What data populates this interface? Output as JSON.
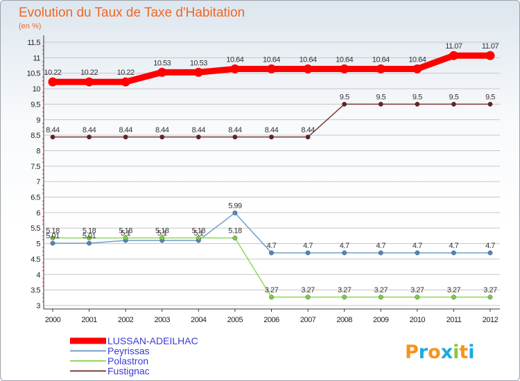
{
  "chart_data": {
    "type": "line",
    "title": "Evolution du Taux de Taxe d'Habitation",
    "subtitle": "(en %)",
    "categories": [
      "2000",
      "2001",
      "2002",
      "2003",
      "2004",
      "2005",
      "2006",
      "2007",
      "2008",
      "2009",
      "2010",
      "2011",
      "2012"
    ],
    "ylim": [
      3,
      11.5
    ],
    "yticks": [
      "3",
      "3.5",
      "4",
      "4.5",
      "5",
      "5.5",
      "6",
      "6.5",
      "7",
      "7.5",
      "8",
      "8.5",
      "9",
      "9.5",
      "10",
      "10.5",
      "11",
      "11.5"
    ],
    "grid": "horizontal",
    "legend_position": "bottom-left",
    "series": [
      {
        "name": "LUSSAN-ADEILHAC",
        "color": "#ff0000",
        "style": "bold",
        "values": [
          10.22,
          10.22,
          10.22,
          10.53,
          10.53,
          10.64,
          10.64,
          10.64,
          10.64,
          10.64,
          10.64,
          11.07,
          11.07
        ],
        "labels": [
          "10.22",
          "10.22",
          "10.22",
          "10.53",
          "10.53",
          "10.64",
          "10.64",
          "10.64",
          "10.64",
          "10.64",
          "10.64",
          "11.07",
          "11.07"
        ]
      },
      {
        "name": "Peyrissas",
        "color": "#6e9fc9",
        "marker_color": "#4e86c0",
        "style": "thin",
        "values": [
          5.01,
          5.01,
          5.1,
          5.1,
          5.1,
          5.99,
          4.7,
          4.7,
          4.7,
          4.7,
          4.7,
          4.7,
          4.7
        ],
        "labels": [
          "5.01",
          "5.01",
          "5.1",
          "5.1",
          "5.1",
          "5.99",
          "4.7",
          "4.7",
          "4.7",
          "4.7",
          "4.7",
          "4.7",
          "4.7"
        ]
      },
      {
        "name": "Polastron",
        "color": "#8fd85a",
        "marker_color": "#7ccd3f",
        "style": "thin",
        "values": [
          5.18,
          5.18,
          5.18,
          5.18,
          5.18,
          5.18,
          3.27,
          3.27,
          3.27,
          3.27,
          3.27,
          3.27,
          3.27
        ],
        "labels": [
          "5.18",
          "5.18",
          "5.18",
          "5.18",
          "5.18",
          "5.18",
          "3.27",
          "3.27",
          "3.27",
          "3.27",
          "3.27",
          "3.27",
          "3.27"
        ]
      },
      {
        "name": "Fustignac",
        "color": "#7a3a3a",
        "marker_color": "#6b2020",
        "style": "thin",
        "values": [
          8.44,
          8.44,
          8.44,
          8.44,
          8.44,
          8.44,
          8.44,
          8.44,
          9.5,
          9.5,
          9.5,
          9.5,
          9.5
        ],
        "labels": [
          "8.44",
          "8.44",
          "8.44",
          "8.44",
          "8.44",
          "8.44",
          "8.44",
          "8.44",
          "9.5",
          "9.5",
          "9.5",
          "9.5",
          "9.5"
        ]
      }
    ]
  },
  "logo": {
    "text": "Proxiti",
    "letters": [
      "P",
      "r",
      "o",
      "x",
      "i",
      "t",
      "i"
    ],
    "colors": [
      "#f7931e",
      "#1aa9e1",
      "#f7931e",
      "#1aa9e1",
      "#8cc63f",
      "#f7931e",
      "#1aa9e1"
    ]
  }
}
